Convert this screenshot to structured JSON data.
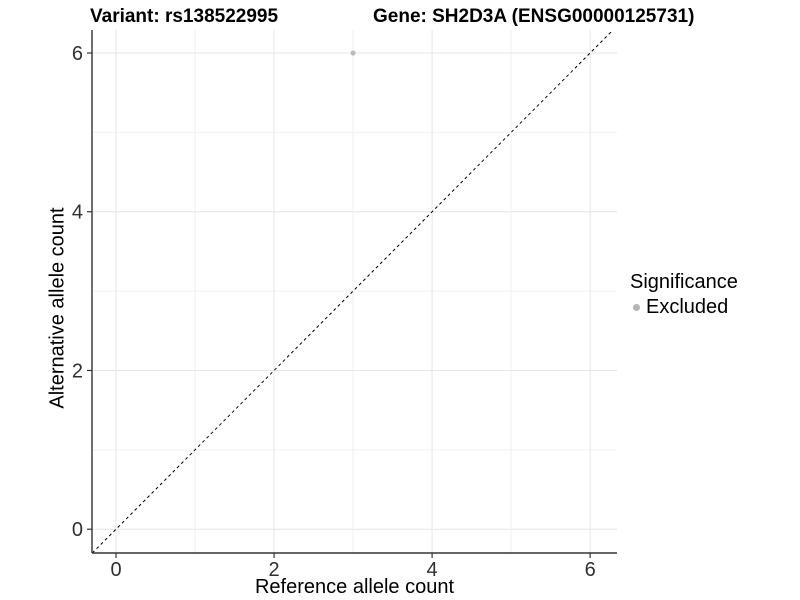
{
  "chart_data": {
    "type": "scatter",
    "title_left": "Variant: rs138522995",
    "title_right": "Gene: SH2D3A (ENSG00000125731)",
    "xlabel": "Reference allele count",
    "ylabel": "Alternative allele count",
    "xlim": [
      -0.304,
      6.34
    ],
    "ylim": [
      -0.3,
      6.29
    ],
    "xticks": [
      0,
      2,
      4,
      6
    ],
    "yticks": [
      0,
      2,
      4,
      6
    ],
    "xticks_minor": [
      1,
      3,
      5
    ],
    "yticks_minor": [
      1,
      3,
      5
    ],
    "grid": true,
    "points": [
      {
        "x": 3,
        "y": 6,
        "series": "Excluded"
      }
    ],
    "identity_line": {
      "style": "dashed",
      "slope": 1,
      "intercept": 0
    },
    "legend": {
      "title": "Significance",
      "position": "right",
      "entries": [
        {
          "label": "Excluded",
          "color": "#b5b5b5"
        }
      ]
    },
    "colors": {
      "point": "#bcbcbc",
      "grid_major": "#e6e6e6",
      "grid_minor": "#f0f0f0",
      "axis": "#333333",
      "tick_text": "#303030",
      "dashed_line": "#000000"
    }
  }
}
